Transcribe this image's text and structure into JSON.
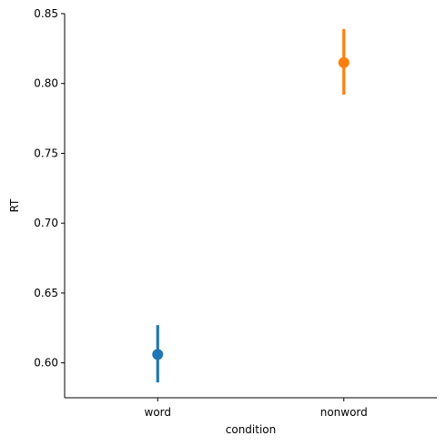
{
  "chart_data": {
    "type": "scatter",
    "categories": [
      "word",
      "nonword"
    ],
    "xlabel": "condition",
    "ylabel": "RT",
    "ylim": [
      0.575,
      0.85
    ],
    "yticks": [
      "0.60",
      "0.65",
      "0.70",
      "0.75",
      "0.80",
      "0.85"
    ],
    "grid": false,
    "legend": "none",
    "points": [
      {
        "category": "word",
        "mean": 0.606,
        "ci_low": 0.586,
        "ci_high": 0.627,
        "color": "#1f77b4"
      },
      {
        "category": "nonword",
        "mean": 0.815,
        "ci_low": 0.792,
        "ci_high": 0.839,
        "color": "#ff7f0e"
      }
    ]
  }
}
